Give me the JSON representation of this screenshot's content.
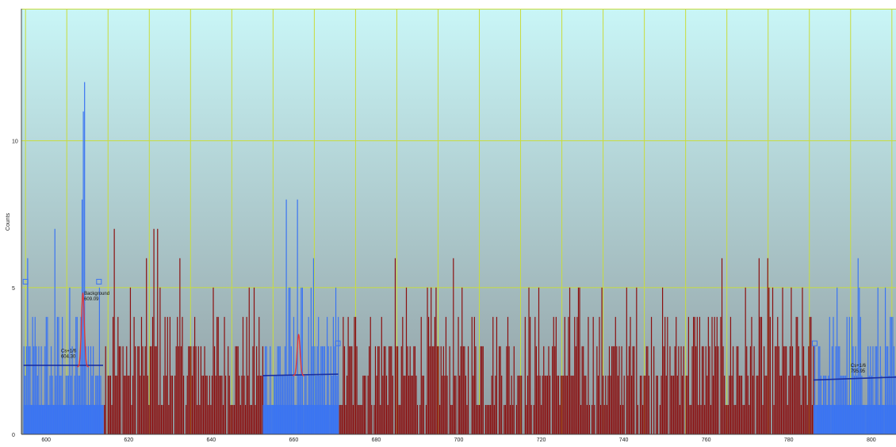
{
  "chart_data": {
    "type": "bar",
    "title": "",
    "xlabel": "",
    "ylabel": "Counts",
    "xlim": [
      594,
      806
    ],
    "ylim": [
      0,
      14.5
    ],
    "grid": true,
    "x_ticks": [
      "600",
      "620",
      "640",
      "660",
      "680",
      "700",
      "720",
      "740",
      "760",
      "780",
      "800"
    ],
    "y_ticks": [
      "0",
      "5",
      "10"
    ],
    "colors": {
      "roi": "#3b74f2",
      "spectrum": "#8b0f0f",
      "fit": "#e03a3a",
      "baseline": "#1a2fa0",
      "grid": "#c8dc3c",
      "bg_top": "#c9f6f7",
      "bg_bottom": "#8f9ba0"
    },
    "regions": [
      {
        "name": "roi-1",
        "x_start": 594.5,
        "x_end": 613.8,
        "baseline": [
          2.35,
          2.35
        ]
      },
      {
        "name": "roi-2",
        "x_start": 652.5,
        "x_end": 670.8,
        "baseline": [
          2.0,
          2.05
        ]
      },
      {
        "name": "roi-3",
        "x_start": 786.0,
        "x_end": 806.0,
        "baseline": [
          1.85,
          1.95
        ]
      }
    ],
    "peaks": [
      {
        "center": 608.9,
        "height": 4.8,
        "base": 2.3,
        "sigma": 0.35
      },
      {
        "center": 661.2,
        "height": 3.4,
        "base": 2.0,
        "sigma": 0.35
      }
    ],
    "notable_bins": [
      {
        "x": 608.6,
        "y": 8.0
      },
      {
        "x": 608.9,
        "y": 11.0
      },
      {
        "x": 609.2,
        "y": 12.0
      },
      {
        "x": 602.0,
        "y": 7.0
      },
      {
        "x": 658.2,
        "y": 8.0
      },
      {
        "x": 661.0,
        "y": 8.0
      },
      {
        "x": 616.4,
        "y": 7.0
      },
      {
        "x": 626.0,
        "y": 7.0
      },
      {
        "x": 627.0,
        "y": 7.0
      },
      {
        "x": 796.8,
        "y": 6.0
      }
    ],
    "annotations": [
      {
        "x": 609.2,
        "y": 4.75,
        "lines": [
          "Background",
          "609.09"
        ]
      },
      {
        "x": 603.6,
        "y": 2.8,
        "lines": [
          "Cs+1/6",
          "604.30"
        ]
      },
      {
        "x": 795.0,
        "y": 2.3,
        "lines": [
          "Cs+1/6",
          "795.95"
        ]
      }
    ],
    "markers": [
      {
        "x": 595.0,
        "y": 5.2
      },
      {
        "x": 612.8,
        "y": 5.2
      },
      {
        "x": 670.7,
        "y": 3.1
      },
      {
        "x": 786.3,
        "y": 3.1
      }
    ]
  }
}
